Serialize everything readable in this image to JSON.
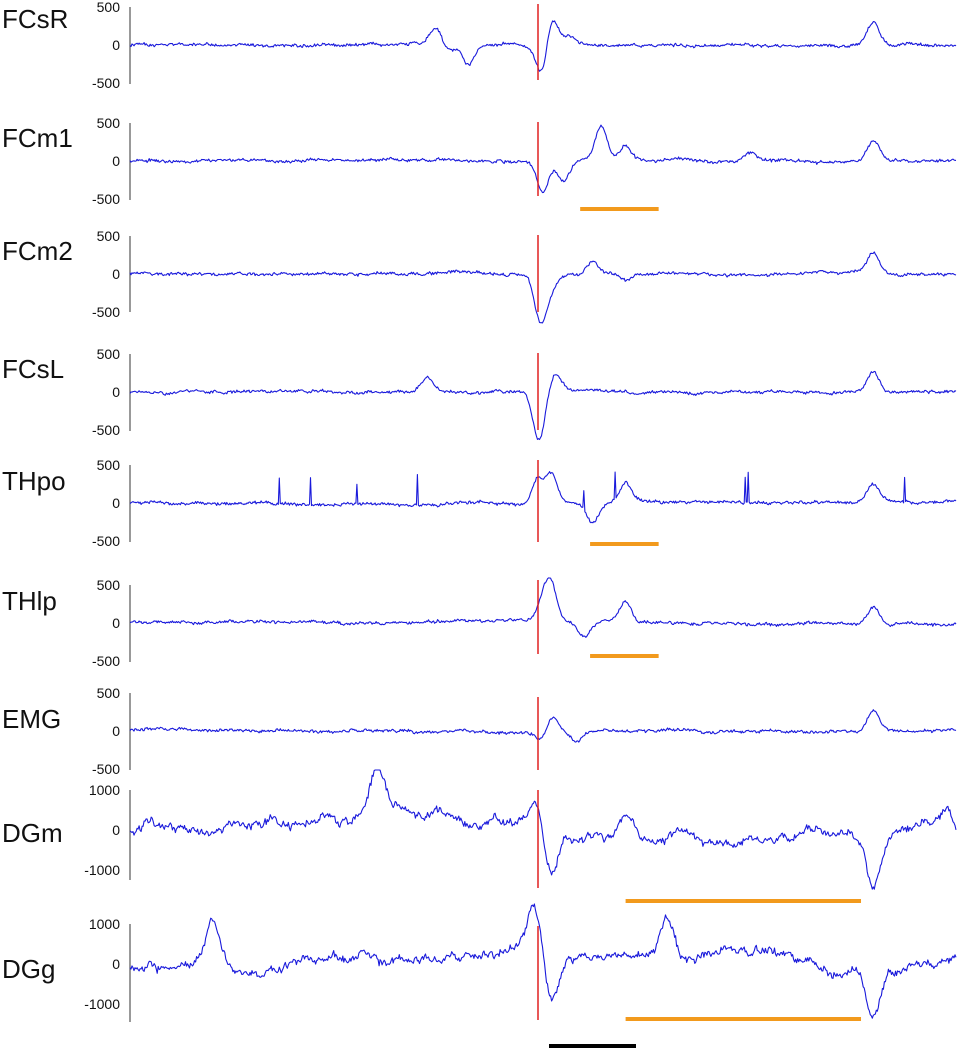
{
  "chart_data": {
    "type": "line",
    "x_range": [
      0,
      1
    ],
    "stimulus_x": 0.5,
    "colors": {
      "trace": "#1a1adb",
      "stimulus": "#e02020",
      "bar_orange": "#f29a1d",
      "scale_bar": "#000000"
    },
    "channels": [
      {
        "name": "FCsR",
        "ticks": [
          "500",
          "0",
          "-500"
        ],
        "ylim": [
          -500,
          500
        ],
        "features": [
          [
            0.37,
            220
          ],
          [
            0.385,
            -80
          ],
          [
            0.41,
            -300
          ],
          [
            0.5,
            -480
          ],
          [
            0.51,
            500
          ],
          [
            0.53,
            120
          ],
          [
            0.9,
            320
          ]
        ],
        "bars": []
      },
      {
        "name": "FCm1",
        "ticks": [
          "500",
          "0",
          "-500"
        ],
        "ylim": [
          -500,
          500
        ],
        "features": [
          [
            0.5,
            -480
          ],
          [
            0.525,
            -300
          ],
          [
            0.57,
            500
          ],
          [
            0.6,
            200
          ],
          [
            0.75,
            120
          ],
          [
            0.9,
            300
          ]
        ],
        "bars": [
          [
            0.545,
            0.64
          ]
        ]
      },
      {
        "name": "FCm2",
        "ticks": [
          "500",
          "0",
          "-500"
        ],
        "ylim": [
          -500,
          500
        ],
        "features": [
          [
            0.497,
            -680
          ],
          [
            0.51,
            -200
          ],
          [
            0.56,
            180
          ],
          [
            0.6,
            -100
          ],
          [
            0.9,
            300
          ]
        ],
        "bars": []
      },
      {
        "name": "FCsL",
        "ticks": [
          "500",
          "0",
          "-500"
        ],
        "ylim": [
          -500,
          500
        ],
        "features": [
          [
            0.36,
            200
          ],
          [
            0.495,
            -700
          ],
          [
            0.515,
            260
          ],
          [
            0.9,
            310
          ]
        ],
        "bars": []
      },
      {
        "name": "THpo",
        "ticks": [
          "500",
          "0",
          "-500"
        ],
        "ylim": [
          -500,
          500
        ],
        "features": [
          [
            0.495,
            520
          ],
          [
            0.5,
            -200
          ],
          [
            0.51,
            480
          ],
          [
            0.56,
            -280
          ],
          [
            0.6,
            280
          ],
          [
            0.9,
            260
          ]
        ],
        "bars": [
          [
            0.557,
            0.64
          ]
        ]
      },
      {
        "name": "THlp",
        "ticks": [
          "500",
          "0",
          "-500"
        ],
        "ylim": [
          -500,
          500
        ],
        "features": [
          [
            0.5,
            260
          ],
          [
            0.51,
            520
          ],
          [
            0.55,
            -180
          ],
          [
            0.6,
            300
          ],
          [
            0.9,
            240
          ]
        ],
        "bars": [
          [
            0.557,
            0.64
          ]
        ]
      },
      {
        "name": "EMG",
        "ticks": [
          "500",
          "0",
          "-500"
        ],
        "ylim": [
          -500,
          500
        ],
        "features": [
          [
            0.5,
            -150
          ],
          [
            0.51,
            260
          ],
          [
            0.54,
            -180
          ],
          [
            0.9,
            300
          ]
        ],
        "bars": []
      },
      {
        "name": "DGm",
        "ticks": [
          "1000",
          "0",
          "-1000"
        ],
        "ylim": [
          -1000,
          1000
        ],
        "features": [
          [
            0.3,
            1000
          ],
          [
            0.49,
            700
          ],
          [
            0.51,
            -1400
          ],
          [
            0.6,
            700
          ],
          [
            0.9,
            -1400
          ],
          [
            0.99,
            600
          ]
        ],
        "bars": [
          [
            0.6,
            0.885
          ]
        ]
      },
      {
        "name": "DGg",
        "ticks": [
          "1000",
          "0",
          "-1000"
        ],
        "ylim": [
          -1000,
          1000
        ],
        "features": [
          [
            0.1,
            1400
          ],
          [
            0.49,
            1400
          ],
          [
            0.51,
            -1500
          ],
          [
            0.65,
            1100
          ],
          [
            0.9,
            -1500
          ],
          [
            0.99,
            200
          ]
        ],
        "bars": [
          [
            0.6,
            0.885
          ]
        ]
      }
    ],
    "scale_bar": [
      0.5,
      0.6
    ]
  }
}
